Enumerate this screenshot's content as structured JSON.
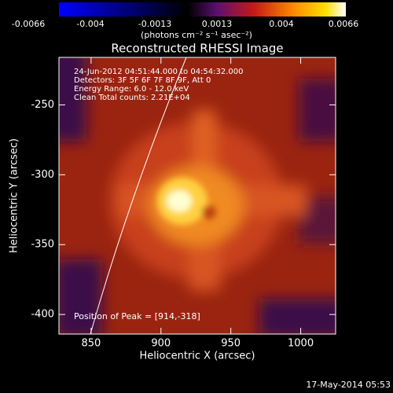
{
  "chart_data": {
    "type": "image",
    "title": "Reconstructed RHESSI Image",
    "xlabel": "Heliocentric X (arcsec)",
    "ylabel": "Heliocentric Y (arcsec)",
    "xlim": [
      827,
      1025
    ],
    "xticks": [
      850,
      900,
      950,
      1000
    ],
    "ylim": [
      -414,
      -216
    ],
    "yticks": [
      -250,
      -300,
      -350,
      -400
    ],
    "colorbar": {
      "clim": [
        -0.0066,
        0.0066
      ],
      "ticks": [
        -0.0066,
        -0.004,
        -0.0013,
        0.0013,
        0.004,
        0.0066
      ],
      "label": "(photons cm⁻² s⁻¹ asec⁻²)"
    },
    "annotations": [
      "24-Jun-2012 04:51:44.000 to 04:54:32.000",
      "Detectors: 3F 5F 6F 7F 8F 9F, Att 0",
      "Energy Range: 6.0 - 12.0 keV",
      "Clean     Total counts: 2.21E+04"
    ],
    "peak_label": "Position of Peak = [914,-318]",
    "footer": "17-May-2014 05:53"
  }
}
